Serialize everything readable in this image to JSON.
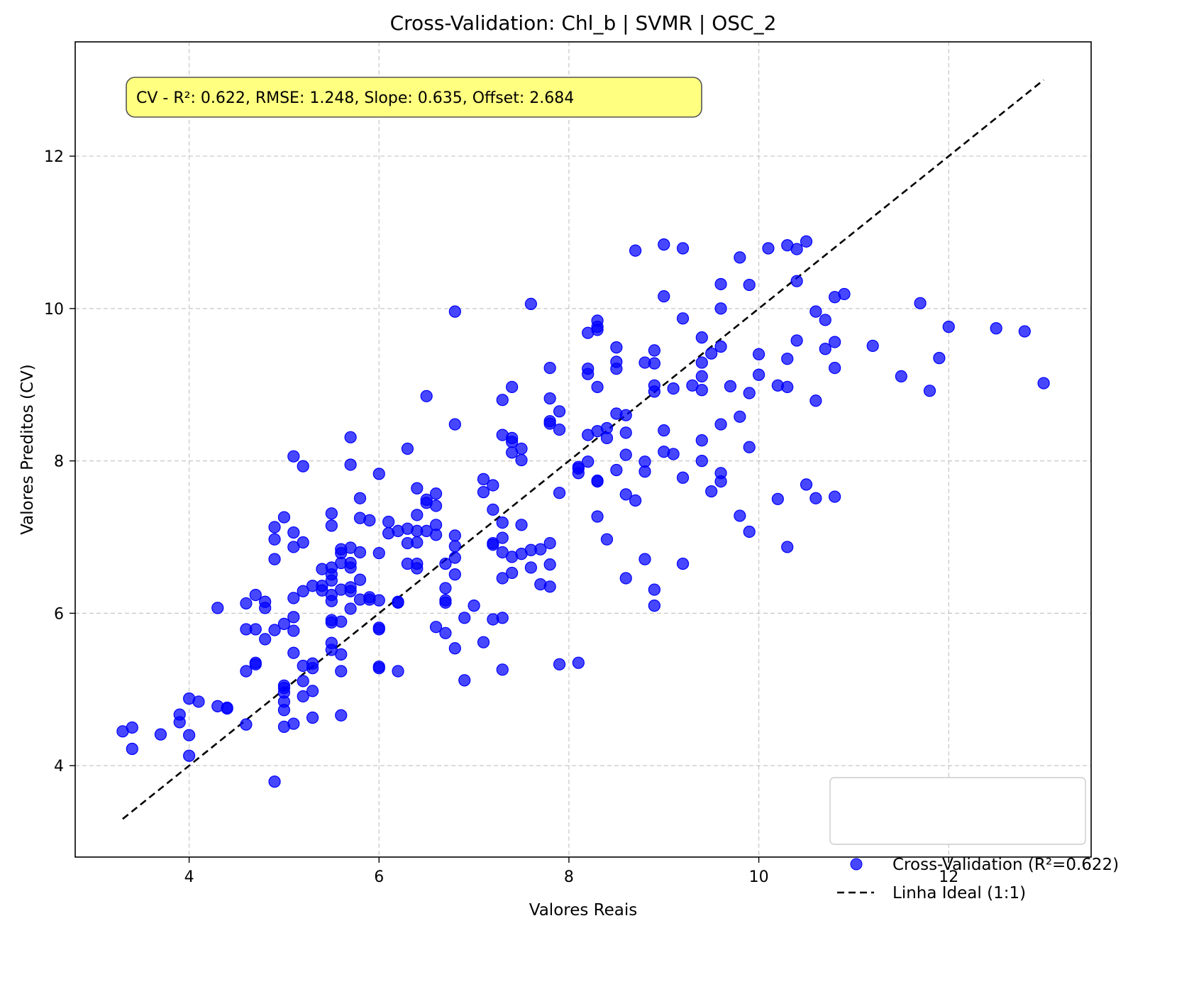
{
  "chart_data": {
    "type": "scatter",
    "title": "Cross-Validation: Chl_b | SVMR | OSC_2",
    "xlabel": "Valores Reais",
    "ylabel": "Valores Preditos (CV)",
    "xlim": [
      2.8,
      13.5
    ],
    "ylim": [
      2.8,
      13.5
    ],
    "xticks": [
      4,
      6,
      8,
      10,
      12
    ],
    "yticks": [
      4,
      6,
      8,
      10,
      12
    ],
    "grid": true,
    "legend_position": "lower-right",
    "annotation": "CV - R²: 0.622, RMSE: 1.248, Slope: 0.635, Offset: 2.684",
    "colors": {
      "points": "#0000ff",
      "ideal_line": "#000000",
      "annotation_bg": "#ffff80"
    },
    "series": [
      {
        "name": "Cross-Validation (R²=0.622)",
        "kind": "scatter",
        "points": [
          [
            3.3,
            4.45
          ],
          [
            3.4,
            4.5
          ],
          [
            3.4,
            4.22
          ],
          [
            3.7,
            4.41
          ],
          [
            3.9,
            4.57
          ],
          [
            3.9,
            4.67
          ],
          [
            4.0,
            4.88
          ],
          [
            4.0,
            4.4
          ],
          [
            4.0,
            4.13
          ],
          [
            4.1,
            4.84
          ],
          [
            4.3,
            4.78
          ],
          [
            4.3,
            6.07
          ],
          [
            4.4,
            4.76
          ],
          [
            4.4,
            4.75
          ],
          [
            4.6,
            6.13
          ],
          [
            4.6,
            5.79
          ],
          [
            4.6,
            5.24
          ],
          [
            4.6,
            4.54
          ],
          [
            4.7,
            6.24
          ],
          [
            4.7,
            5.79
          ],
          [
            4.7,
            5.35
          ],
          [
            4.7,
            5.33
          ],
          [
            4.8,
            6.15
          ],
          [
            4.8,
            6.07
          ],
          [
            4.8,
            5.66
          ],
          [
            4.9,
            7.13
          ],
          [
            4.9,
            6.97
          ],
          [
            4.9,
            6.71
          ],
          [
            4.9,
            5.78
          ],
          [
            4.9,
            3.79
          ],
          [
            5.0,
            7.26
          ],
          [
            5.0,
            5.86
          ],
          [
            5.0,
            5.05
          ],
          [
            5.0,
            5.02
          ],
          [
            5.0,
            4.96
          ],
          [
            5.0,
            4.84
          ],
          [
            5.0,
            4.73
          ],
          [
            5.0,
            4.51
          ],
          [
            5.1,
            8.06
          ],
          [
            5.1,
            7.06
          ],
          [
            5.1,
            6.87
          ],
          [
            5.1,
            6.2
          ],
          [
            5.1,
            5.95
          ],
          [
            5.1,
            5.77
          ],
          [
            5.1,
            5.48
          ],
          [
            5.1,
            4.55
          ],
          [
            5.2,
            7.93
          ],
          [
            5.2,
            6.93
          ],
          [
            5.2,
            6.29
          ],
          [
            5.2,
            5.31
          ],
          [
            5.2,
            5.11
          ],
          [
            5.2,
            4.91
          ],
          [
            5.3,
            6.36
          ],
          [
            5.3,
            5.34
          ],
          [
            5.3,
            5.28
          ],
          [
            5.3,
            4.98
          ],
          [
            5.3,
            4.63
          ],
          [
            5.4,
            6.58
          ],
          [
            5.4,
            6.36
          ],
          [
            5.4,
            6.3
          ],
          [
            5.5,
            7.31
          ],
          [
            5.5,
            7.15
          ],
          [
            5.5,
            6.6
          ],
          [
            5.5,
            6.51
          ],
          [
            5.5,
            6.43
          ],
          [
            5.5,
            6.24
          ],
          [
            5.5,
            6.16
          ],
          [
            5.5,
            5.91
          ],
          [
            5.5,
            5.88
          ],
          [
            5.5,
            5.61
          ],
          [
            5.5,
            5.52
          ],
          [
            5.6,
            6.84
          ],
          [
            5.6,
            6.79
          ],
          [
            5.6,
            6.66
          ],
          [
            5.6,
            6.31
          ],
          [
            5.6,
            5.89
          ],
          [
            5.6,
            5.46
          ],
          [
            5.6,
            5.24
          ],
          [
            5.6,
            4.66
          ],
          [
            5.7,
            8.31
          ],
          [
            5.7,
            7.95
          ],
          [
            5.7,
            6.86
          ],
          [
            5.7,
            6.66
          ],
          [
            5.7,
            6.6
          ],
          [
            5.7,
            6.34
          ],
          [
            5.7,
            6.29
          ],
          [
            5.7,
            6.06
          ],
          [
            5.8,
            7.51
          ],
          [
            5.8,
            7.25
          ],
          [
            5.8,
            6.8
          ],
          [
            5.8,
            6.44
          ],
          [
            5.8,
            6.18
          ],
          [
            5.9,
            7.22
          ],
          [
            5.9,
            6.21
          ],
          [
            5.9,
            6.18
          ],
          [
            6.0,
            7.83
          ],
          [
            6.0,
            6.79
          ],
          [
            6.0,
            6.17
          ],
          [
            6.0,
            5.81
          ],
          [
            6.0,
            5.79
          ],
          [
            6.0,
            5.3
          ],
          [
            6.0,
            5.28
          ],
          [
            6.1,
            7.2
          ],
          [
            6.1,
            7.05
          ],
          [
            6.2,
            7.08
          ],
          [
            6.2,
            6.15
          ],
          [
            6.2,
            6.14
          ],
          [
            6.2,
            5.24
          ],
          [
            6.3,
            8.16
          ],
          [
            6.3,
            7.11
          ],
          [
            6.3,
            6.92
          ],
          [
            6.3,
            6.65
          ],
          [
            6.4,
            7.64
          ],
          [
            6.4,
            7.29
          ],
          [
            6.4,
            7.08
          ],
          [
            6.4,
            6.93
          ],
          [
            6.4,
            6.65
          ],
          [
            6.4,
            6.59
          ],
          [
            6.5,
            8.85
          ],
          [
            6.5,
            7.49
          ],
          [
            6.5,
            7.45
          ],
          [
            6.5,
            7.08
          ],
          [
            6.6,
            7.57
          ],
          [
            6.6,
            7.41
          ],
          [
            6.6,
            7.16
          ],
          [
            6.6,
            7.03
          ],
          [
            6.6,
            5.82
          ],
          [
            6.7,
            6.65
          ],
          [
            6.7,
            6.33
          ],
          [
            6.7,
            6.17
          ],
          [
            6.7,
            6.14
          ],
          [
            6.7,
            5.74
          ],
          [
            6.8,
            9.96
          ],
          [
            6.8,
            8.48
          ],
          [
            6.8,
            7.02
          ],
          [
            6.8,
            6.88
          ],
          [
            6.8,
            6.73
          ],
          [
            6.8,
            6.51
          ],
          [
            6.8,
            5.54
          ],
          [
            6.9,
            5.94
          ],
          [
            6.9,
            5.12
          ],
          [
            7.0,
            6.1
          ],
          [
            7.1,
            7.76
          ],
          [
            7.1,
            7.59
          ],
          [
            7.1,
            5.62
          ],
          [
            7.2,
            7.68
          ],
          [
            7.2,
            7.36
          ],
          [
            7.2,
            6.92
          ],
          [
            7.2,
            6.9
          ],
          [
            7.2,
            5.92
          ],
          [
            7.3,
            8.8
          ],
          [
            7.3,
            8.34
          ],
          [
            7.3,
            7.19
          ],
          [
            7.3,
            6.99
          ],
          [
            7.3,
            6.8
          ],
          [
            7.3,
            6.46
          ],
          [
            7.3,
            5.94
          ],
          [
            7.3,
            5.26
          ],
          [
            7.4,
            8.97
          ],
          [
            7.4,
            8.3
          ],
          [
            7.4,
            8.25
          ],
          [
            7.4,
            8.11
          ],
          [
            7.4,
            6.74
          ],
          [
            7.4,
            6.53
          ],
          [
            7.5,
            8.16
          ],
          [
            7.5,
            8.01
          ],
          [
            7.5,
            7.16
          ],
          [
            7.5,
            6.78
          ],
          [
            7.6,
            10.06
          ],
          [
            7.6,
            6.83
          ],
          [
            7.6,
            6.6
          ],
          [
            7.7,
            6.84
          ],
          [
            7.7,
            6.38
          ],
          [
            7.8,
            9.22
          ],
          [
            7.8,
            8.82
          ],
          [
            7.8,
            8.52
          ],
          [
            7.8,
            8.49
          ],
          [
            7.8,
            6.92
          ],
          [
            7.8,
            6.64
          ],
          [
            7.8,
            6.35
          ],
          [
            7.9,
            8.65
          ],
          [
            7.9,
            8.41
          ],
          [
            7.9,
            7.58
          ],
          [
            7.9,
            5.33
          ],
          [
            8.1,
            7.92
          ],
          [
            8.1,
            7.9
          ],
          [
            8.1,
            7.84
          ],
          [
            8.1,
            5.35
          ],
          [
            8.2,
            9.68
          ],
          [
            8.2,
            9.21
          ],
          [
            8.2,
            9.14
          ],
          [
            8.2,
            8.34
          ],
          [
            8.2,
            7.99
          ],
          [
            8.3,
            9.84
          ],
          [
            8.3,
            9.76
          ],
          [
            8.3,
            9.72
          ],
          [
            8.3,
            8.97
          ],
          [
            8.3,
            8.39
          ],
          [
            8.3,
            7.74
          ],
          [
            8.3,
            7.73
          ],
          [
            8.3,
            7.27
          ],
          [
            8.4,
            8.43
          ],
          [
            8.4,
            8.3
          ],
          [
            8.4,
            6.97
          ],
          [
            8.5,
            9.49
          ],
          [
            8.5,
            9.3
          ],
          [
            8.5,
            9.21
          ],
          [
            8.5,
            8.62
          ],
          [
            8.5,
            7.88
          ],
          [
            8.6,
            8.6
          ],
          [
            8.6,
            8.37
          ],
          [
            8.6,
            8.08
          ],
          [
            8.6,
            7.56
          ],
          [
            8.6,
            6.46
          ],
          [
            8.7,
            10.76
          ],
          [
            8.7,
            7.48
          ],
          [
            8.8,
            9.29
          ],
          [
            8.8,
            7.99
          ],
          [
            8.8,
            7.86
          ],
          [
            8.8,
            6.71
          ],
          [
            8.9,
            9.45
          ],
          [
            8.9,
            9.28
          ],
          [
            8.9,
            8.99
          ],
          [
            8.9,
            8.91
          ],
          [
            8.9,
            6.31
          ],
          [
            8.9,
            6.1
          ],
          [
            9.0,
            10.84
          ],
          [
            9.0,
            10.16
          ],
          [
            9.0,
            8.4
          ],
          [
            9.0,
            8.12
          ],
          [
            9.1,
            8.95
          ],
          [
            9.1,
            8.09
          ],
          [
            9.2,
            10.79
          ],
          [
            9.2,
            9.87
          ],
          [
            9.2,
            7.78
          ],
          [
            9.2,
            6.65
          ],
          [
            9.3,
            8.99
          ],
          [
            9.4,
            9.62
          ],
          [
            9.4,
            9.29
          ],
          [
            9.4,
            9.11
          ],
          [
            9.4,
            8.93
          ],
          [
            9.4,
            8.27
          ],
          [
            9.4,
            8.0
          ],
          [
            9.5,
            9.41
          ],
          [
            9.5,
            7.6
          ],
          [
            9.6,
            10.32
          ],
          [
            9.6,
            10.0
          ],
          [
            9.6,
            9.5
          ],
          [
            9.6,
            8.48
          ],
          [
            9.6,
            7.84
          ],
          [
            9.6,
            7.73
          ],
          [
            9.7,
            8.98
          ],
          [
            9.8,
            10.67
          ],
          [
            9.8,
            8.58
          ],
          [
            9.8,
            7.28
          ],
          [
            9.9,
            10.31
          ],
          [
            9.9,
            8.89
          ],
          [
            9.9,
            8.18
          ],
          [
            9.9,
            7.07
          ],
          [
            10.0,
            9.4
          ],
          [
            10.0,
            9.13
          ],
          [
            10.1,
            10.79
          ],
          [
            10.2,
            8.99
          ],
          [
            10.2,
            7.5
          ],
          [
            10.3,
            10.83
          ],
          [
            10.3,
            9.34
          ],
          [
            10.3,
            8.97
          ],
          [
            10.3,
            6.87
          ],
          [
            10.4,
            10.78
          ],
          [
            10.4,
            10.36
          ],
          [
            10.4,
            9.58
          ],
          [
            10.5,
            10.88
          ],
          [
            10.5,
            7.69
          ],
          [
            10.6,
            9.96
          ],
          [
            10.6,
            8.79
          ],
          [
            10.6,
            7.51
          ],
          [
            10.7,
            9.85
          ],
          [
            10.7,
            9.47
          ],
          [
            10.8,
            10.15
          ],
          [
            10.8,
            9.56
          ],
          [
            10.8,
            9.22
          ],
          [
            10.8,
            7.53
          ],
          [
            10.9,
            10.19
          ],
          [
            11.2,
            9.51
          ],
          [
            11.5,
            9.11
          ],
          [
            11.7,
            10.07
          ],
          [
            11.8,
            8.92
          ],
          [
            11.9,
            9.35
          ],
          [
            12.0,
            9.76
          ],
          [
            12.5,
            9.74
          ],
          [
            12.8,
            9.7
          ],
          [
            13.0,
            9.02
          ]
        ]
      },
      {
        "name": "Linha Ideal (1:1)",
        "kind": "line",
        "x": [
          3.3,
          13.0
        ],
        "y": [
          3.3,
          13.0
        ]
      }
    ]
  }
}
